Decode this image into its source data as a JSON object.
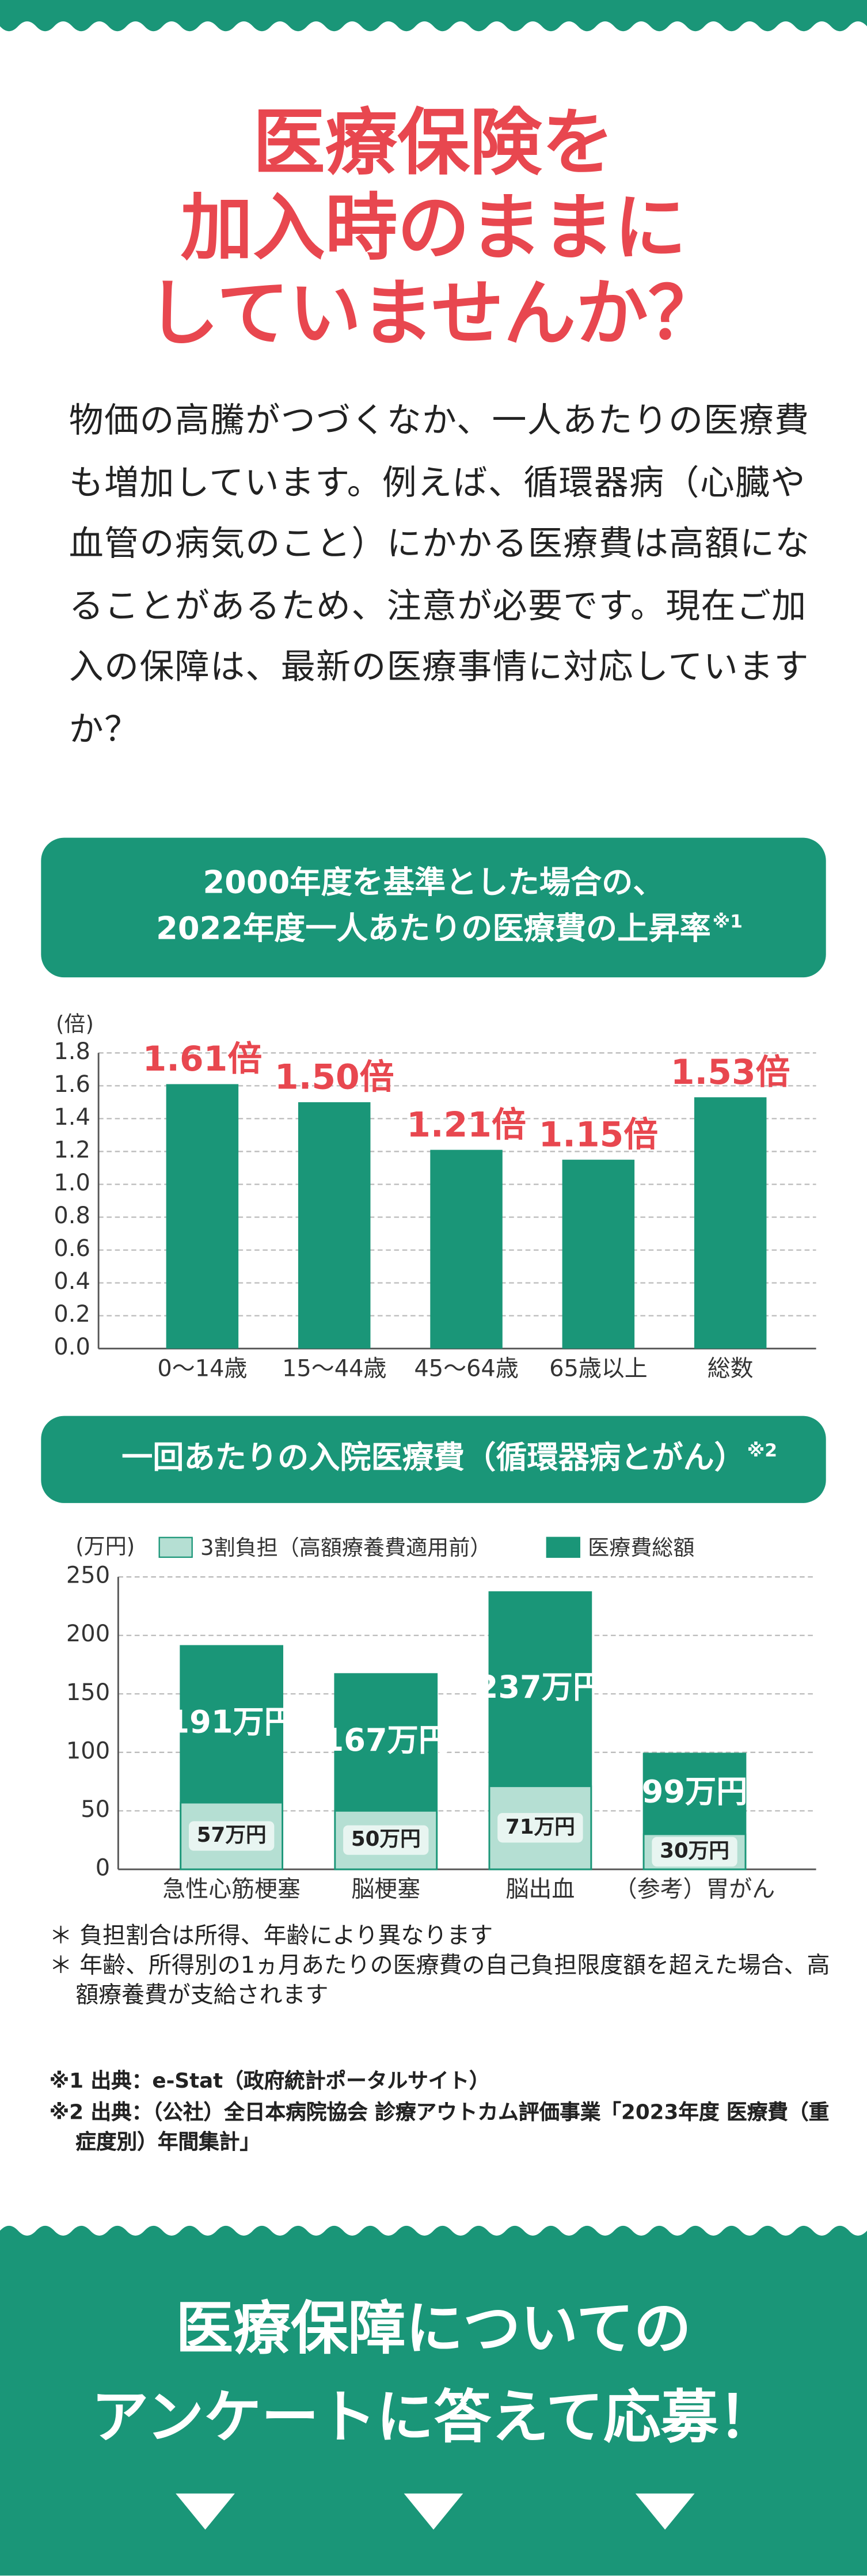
{
  "header": {
    "title": [
      "医療保険を",
      "加入時のままに",
      "していませんか？"
    ]
  },
  "intro": "物価の高騰がつづくなか、一人あたりの医療費も増加しています。例えば、循環器病（心臓や血管の病気のこと）にかかる医療費は高額になることがあるため、注意が必要です。現在ご加入の保障は、最新の医療事情に対応していますか？",
  "chart_data": [
    {
      "type": "bar",
      "title": [
        "2000年度を基準とした場合の、",
        "2022年度一人あたりの医療費の上昇率"
      ],
      "title_note": "※1",
      "ylabel": "(倍)",
      "categories": [
        "0〜14歳",
        "15〜44歳",
        "45〜64歳",
        "65歳以上",
        "総数"
      ],
      "values": [
        1.61,
        1.5,
        1.21,
        1.15,
        1.53
      ],
      "value_labels": [
        "1.61倍",
        "1.50倍",
        "1.21倍",
        "1.15倍",
        "1.53倍"
      ],
      "color": "#1a9678",
      "label_color": "#e8474f",
      "ylim": [
        0,
        1.8
      ],
      "yticks": [
        {
          "value": 0,
          "label": "0.0"
        },
        0.2,
        0.4,
        0.6,
        0.8,
        {
          "value": 1,
          "label": "1.0"
        },
        1.2,
        1.4,
        1.6,
        1.8
      ],
      "grid": true
    },
    {
      "type": "overlapped_bar",
      "title": [
        "一回あたりの入院医療費（循環器病とがん）"
      ],
      "title_note": "※2",
      "ylabel": "(万円)",
      "categories": [
        "急性心筋梗塞",
        "脳梗塞",
        "脳出血",
        "（参考）胃がん"
      ],
      "series": [
        {
          "name": "3割負担（高額療養費適用前）",
          "color": "#b5dfd3",
          "values": [
            57,
            50,
            71,
            30
          ],
          "value_labels": [
            "57万円",
            "50万円",
            "71万円",
            "30万円"
          ]
        },
        {
          "name": "医療費総額",
          "color": "#1a9678",
          "values": [
            191,
            167,
            237,
            99
          ],
          "value_labels": [
            "191万円",
            "167万円",
            "237万円",
            "99万円"
          ]
        }
      ],
      "ylim": [
        0,
        250
      ],
      "yticks": [
        0,
        50,
        100,
        150,
        200,
        250
      ],
      "grid": true,
      "legend": "top"
    }
  ],
  "notes": [
    "＊ 負担割合は所得、年齢により異なります",
    "＊ 年齢、所得別の1ヵ月あたりの医療費の自己負担限度額を超えた場合、高額療養費が支給されます"
  ],
  "sources": [
    "※1 出典：e-Stat（政府統計ポータルサイト）",
    "※2 出典：（公社）全日本病院協会 診療アウトカム評価事業「2023年度 医療費（重症度別）年間集計」"
  ],
  "footer": {
    "title": [
      "医療保障についての",
      "アンケートに答えて応募！"
    ]
  }
}
